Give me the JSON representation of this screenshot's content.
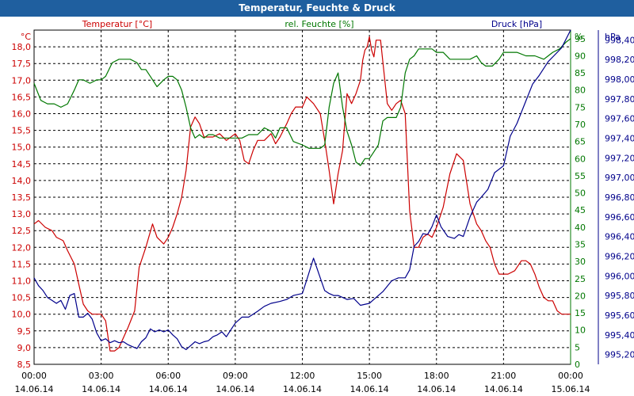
{
  "window": {
    "title": "Temperatur, Feuchte & Druck"
  },
  "chart_data": {
    "type": "line",
    "title": "Temperatur, Feuchte & Druck",
    "grid": true,
    "x_hours": [
      0,
      3,
      6,
      9,
      12,
      15,
      18,
      21,
      24
    ],
    "x_tick_times": [
      "00:00",
      "03:00",
      "06:00",
      "09:00",
      "12:00",
      "15:00",
      "18:00",
      "21:00",
      "00:00"
    ],
    "x_tick_dates": [
      "14.06.14",
      "14.06.14",
      "14.06.14",
      "14.06.14",
      "14.06.14",
      "14.06.14",
      "14.06.14",
      "14.06.14",
      "15.06.14"
    ],
    "colors": {
      "temp": "#cc0000",
      "hum": "#007700",
      "pres": "#00008b",
      "title_bar": "#1f5f9f"
    },
    "axes": {
      "temp": {
        "label": "Temperatur [°C]",
        "unit": "°C",
        "range": [
          8.5,
          18.5
        ],
        "ticks": [
          "8,5",
          "9,0",
          "9,5",
          "10,0",
          "10,5",
          "11,0",
          "11,5",
          "12,0",
          "12,5",
          "13,0",
          "13,5",
          "14,0",
          "14,5",
          "15,0",
          "15,5",
          "16,0",
          "16,5",
          "17,0",
          "17,5",
          "18,0"
        ]
      },
      "hum": {
        "label": "rel. Feuchte [%]",
        "unit": "%",
        "range": [
          0,
          97.5
        ],
        "ticks": [
          "0",
          "5",
          "10",
          "15",
          "20",
          "25",
          "30",
          "35",
          "40",
          "45",
          "50",
          "55",
          "60",
          "65",
          "70",
          "75",
          "80",
          "85",
          "90",
          "95"
        ]
      },
      "pres": {
        "label": "Druck [hPa]",
        "unit": "hPa",
        "range": [
          995.1,
          998.5
        ],
        "ticks": [
          "995,20",
          "995,40",
          "995,60",
          "995,80",
          "996,00",
          "996,20",
          "996,40",
          "996,60",
          "996,80",
          "997,00",
          "997,20",
          "997,40",
          "997,60",
          "997,80",
          "998,00",
          "998,20",
          "998,40"
        ]
      }
    },
    "series": [
      {
        "name": "Temperatur",
        "unit": "°C",
        "axis": "temp",
        "x": [
          0,
          0.2,
          0.5,
          0.8,
          1.0,
          1.3,
          1.5,
          1.8,
          2.0,
          2.2,
          2.4,
          2.6,
          2.8,
          3.0,
          3.2,
          3.4,
          3.6,
          3.8,
          4.0,
          4.2,
          4.5,
          4.7,
          5.0,
          5.3,
          5.5,
          5.8,
          6.0,
          6.2,
          6.4,
          6.6,
          6.8,
          7.0,
          7.2,
          7.4,
          7.6,
          7.8,
          8.0,
          8.3,
          8.6,
          9.0,
          9.2,
          9.4,
          9.6,
          9.8,
          10.0,
          10.3,
          10.6,
          10.8,
          11.0,
          11.3,
          11.5,
          11.7,
          12.0,
          12.2,
          12.5,
          12.8,
          13.0,
          13.2,
          13.4,
          13.6,
          13.8,
          14.0,
          14.2,
          14.4,
          14.6,
          14.7,
          14.8,
          14.9,
          15.0,
          15.1,
          15.2,
          15.3,
          15.5,
          15.8,
          16.0,
          16.2,
          16.4,
          16.6,
          16.8,
          17.0,
          17.2,
          17.4,
          17.6,
          17.8,
          18.0,
          18.3,
          18.6,
          18.9,
          19.2,
          19.5,
          19.8,
          20.0,
          20.2,
          20.4,
          20.6,
          20.8,
          21.0,
          21.2,
          21.5,
          21.8,
          22.0,
          22.2,
          22.4,
          22.6,
          22.8,
          23.0,
          23.2,
          23.4,
          23.6,
          23.8,
          24.0
        ],
        "values": [
          12.7,
          12.8,
          12.6,
          12.5,
          12.3,
          12.2,
          11.9,
          11.5,
          10.9,
          10.3,
          10.1,
          10.0,
          10.0,
          10.0,
          9.8,
          8.9,
          8.9,
          9.0,
          9.3,
          9.6,
          10.1,
          11.4,
          12.0,
          12.7,
          12.3,
          12.1,
          12.3,
          12.6,
          13.0,
          13.5,
          14.3,
          15.6,
          15.9,
          15.7,
          15.3,
          15.3,
          15.3,
          15.4,
          15.2,
          15.4,
          15.2,
          14.6,
          14.5,
          14.9,
          15.2,
          15.2,
          15.4,
          15.1,
          15.3,
          15.7,
          16.0,
          16.2,
          16.2,
          16.5,
          16.3,
          16.0,
          15.2,
          14.3,
          13.3,
          14.2,
          14.9,
          16.6,
          16.3,
          16.6,
          17.0,
          17.6,
          17.9,
          18.0,
          18.3,
          17.9,
          17.7,
          18.2,
          18.2,
          16.3,
          16.1,
          16.3,
          16.4,
          16.0,
          13.1,
          12.0,
          12.0,
          12.3,
          12.4,
          12.3,
          12.6,
          13.2,
          14.2,
          14.8,
          14.6,
          13.3,
          12.7,
          12.5,
          12.2,
          12.0,
          11.5,
          11.2,
          11.2,
          11.2,
          11.3,
          11.6,
          11.6,
          11.5,
          11.2,
          10.8,
          10.5,
          10.4,
          10.4,
          10.1,
          10.0,
          10.0,
          10.0
        ]
      },
      {
        "name": "rel. Feuchte",
        "unit": "%",
        "axis": "hum",
        "x": [
          0,
          0.3,
          0.6,
          0.9,
          1.2,
          1.5,
          1.8,
          2.0,
          2.2,
          2.5,
          2.8,
          3.0,
          3.2,
          3.5,
          3.8,
          4.0,
          4.3,
          4.6,
          4.8,
          5.0,
          5.2,
          5.5,
          5.8,
          6.0,
          6.2,
          6.4,
          6.6,
          6.8,
          7.0,
          7.2,
          7.4,
          7.6,
          7.8,
          8.0,
          8.3,
          8.6,
          9.0,
          9.3,
          9.6,
          10.0,
          10.3,
          10.6,
          10.8,
          11.0,
          11.3,
          11.6,
          12.0,
          12.3,
          12.6,
          12.8,
          13.0,
          13.2,
          13.4,
          13.6,
          13.8,
          14.0,
          14.2,
          14.4,
          14.6,
          14.8,
          15.0,
          15.2,
          15.4,
          15.6,
          15.8,
          16.0,
          16.2,
          16.4,
          16.6,
          16.8,
          17.0,
          17.2,
          17.4,
          17.6,
          17.8,
          18.0,
          18.3,
          18.6,
          18.9,
          19.2,
          19.5,
          19.8,
          20.0,
          20.2,
          20.5,
          20.8,
          21.0,
          21.3,
          21.6,
          22.0,
          22.4,
          22.8,
          23.0,
          23.2,
          23.5,
          23.8,
          24.0
        ],
        "values": [
          82,
          77,
          76,
          76,
          75,
          76,
          80,
          83,
          83,
          82,
          83,
          83,
          84,
          88,
          89,
          89,
          89,
          88,
          86,
          86,
          84,
          81,
          83,
          84,
          84,
          83,
          80,
          75,
          69,
          66,
          67,
          66,
          67,
          67,
          66,
          66,
          66,
          66,
          67,
          67,
          69,
          68,
          66,
          69,
          69,
          65,
          64,
          63,
          63,
          63,
          64,
          75,
          82,
          85,
          75,
          68,
          64,
          59,
          58,
          60,
          60,
          62,
          64,
          71,
          72,
          72,
          72,
          75,
          85,
          89,
          90,
          92,
          92,
          92,
          92,
          91,
          91,
          89,
          89,
          89,
          89,
          90,
          88,
          87,
          87,
          89,
          91,
          91,
          91,
          90,
          90,
          89,
          90,
          91,
          92,
          94,
          95
        ]
      },
      {
        "name": "Druck",
        "unit": "hPa",
        "axis": "pres",
        "x": [
          0,
          0.2,
          0.4,
          0.6,
          0.8,
          1.0,
          1.2,
          1.4,
          1.6,
          1.8,
          2.0,
          2.2,
          2.4,
          2.6,
          2.8,
          3.0,
          3.2,
          3.4,
          3.6,
          3.8,
          4.0,
          4.2,
          4.4,
          4.6,
          4.8,
          5.0,
          5.2,
          5.4,
          5.6,
          5.8,
          6.0,
          6.2,
          6.4,
          6.6,
          6.8,
          7.0,
          7.2,
          7.4,
          7.6,
          7.8,
          8.0,
          8.2,
          8.4,
          8.6,
          8.8,
          9.0,
          9.3,
          9.6,
          10.0,
          10.3,
          10.6,
          11.0,
          11.3,
          11.6,
          12.0,
          12.2,
          12.5,
          12.8,
          13.0,
          13.2,
          13.4,
          13.6,
          13.8,
          14.0,
          14.3,
          14.6,
          15.0,
          15.3,
          15.6,
          16.0,
          16.3,
          16.6,
          16.8,
          17.0,
          17.2,
          17.4,
          17.6,
          17.8,
          18.0,
          18.2,
          18.5,
          18.8,
          19.0,
          19.2,
          19.5,
          19.8,
          20.0,
          20.3,
          20.6,
          21.0,
          21.3,
          21.6,
          22.0,
          22.3,
          22.6,
          23.0,
          23.3,
          23.6,
          24.0
        ],
        "values": [
          995.98,
          995.9,
          995.85,
          995.78,
          995.75,
          995.72,
          995.75,
          995.66,
          995.8,
          995.82,
          995.58,
          995.58,
          995.62,
          995.56,
          995.42,
          995.34,
          995.36,
          995.32,
          995.34,
          995.32,
          995.33,
          995.3,
          995.28,
          995.26,
          995.33,
          995.37,
          995.46,
          995.43,
          995.45,
          995.43,
          995.45,
          995.4,
          995.36,
          995.28,
          995.25,
          995.29,
          995.33,
          995.31,
          995.33,
          995.34,
          995.38,
          995.4,
          995.43,
          995.38,
          995.45,
          995.52,
          995.58,
          995.58,
          995.64,
          995.69,
          995.72,
          995.74,
          995.76,
          995.8,
          995.82,
          995.96,
          996.18,
          995.98,
          995.85,
          995.82,
          995.8,
          995.8,
          995.78,
          995.76,
          995.77,
          995.7,
          995.72,
          995.78,
          995.84,
          995.95,
          995.98,
          995.98,
          996.06,
          996.3,
          996.35,
          996.43,
          996.42,
          996.5,
          996.62,
          996.5,
          996.4,
          996.38,
          996.42,
          996.4,
          996.6,
          996.75,
          996.8,
          996.88,
          997.05,
          997.12,
          997.42,
          997.55,
          997.78,
          997.95,
          998.04,
          998.18,
          998.25,
          998.32,
          998.5
        ]
      }
    ]
  }
}
